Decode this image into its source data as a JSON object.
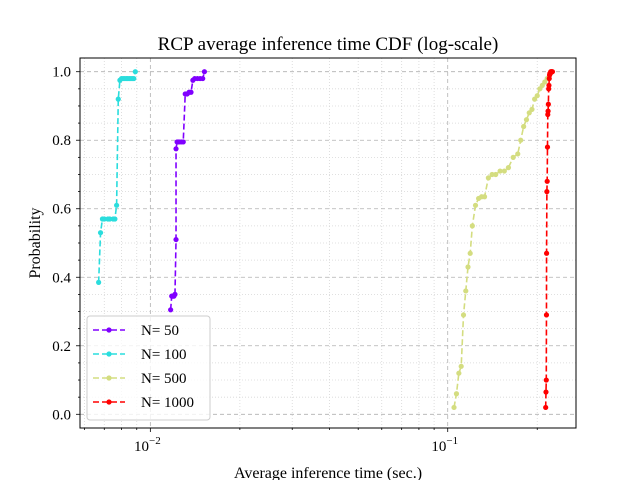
{
  "chart_data": {
    "type": "line",
    "title": "RCP average inference time CDF (log-scale)",
    "xlabel": "Average inference time (sec.)",
    "ylabel": "Probability",
    "xscale": "log",
    "xlim": [
      0.0058,
      0.27
    ],
    "ylim": [
      -0.04,
      1.04
    ],
    "grid": true,
    "legend_location": "lower-left",
    "x_ticks": [
      {
        "value": 0.01,
        "base": "10",
        "exp": "−2"
      },
      {
        "value": 0.1,
        "base": "10",
        "exp": "−1"
      }
    ],
    "y_ticks": [
      {
        "value": 0.0,
        "label": "0.0"
      },
      {
        "value": 0.2,
        "label": "0.2"
      },
      {
        "value": 0.4,
        "label": "0.4"
      },
      {
        "value": 0.6,
        "label": "0.6"
      },
      {
        "value": 0.8,
        "label": "0.8"
      },
      {
        "value": 1.0,
        "label": "1.0"
      }
    ],
    "series": [
      {
        "name": "N= 50",
        "color": "#8000ff",
        "x": [
          0.0117,
          0.0118,
          0.0119,
          0.012,
          0.0121,
          0.0122,
          0.0122,
          0.0123,
          0.0124,
          0.0125,
          0.0127,
          0.0129,
          0.0131,
          0.0133,
          0.0135,
          0.0137,
          0.0139,
          0.0141,
          0.0144,
          0.0147,
          0.015,
          0.0152
        ],
        "y": [
          0.305,
          0.345,
          0.345,
          0.345,
          0.35,
          0.51,
          0.775,
          0.795,
          0.795,
          0.795,
          0.795,
          0.795,
          0.935,
          0.935,
          0.94,
          0.94,
          0.975,
          0.98,
          0.98,
          0.98,
          0.98,
          1.0
        ]
      },
      {
        "name": "N= 100",
        "color": "#2adddd",
        "x": [
          0.0067,
          0.0068,
          0.0069,
          0.007,
          0.0072,
          0.0073,
          0.0075,
          0.0076,
          0.0077,
          0.0078,
          0.0079,
          0.008,
          0.0081,
          0.0082,
          0.0083,
          0.0084,
          0.0085,
          0.0086,
          0.0087,
          0.0088,
          0.0089
        ],
        "y": [
          0.385,
          0.53,
          0.57,
          0.57,
          0.57,
          0.57,
          0.57,
          0.57,
          0.61,
          0.92,
          0.975,
          0.98,
          0.98,
          0.98,
          0.98,
          0.98,
          0.98,
          0.98,
          0.98,
          0.98,
          1.0
        ]
      },
      {
        "name": "N= 500",
        "color": "#d4dd80",
        "x": [
          0.105,
          0.107,
          0.109,
          0.111,
          0.113,
          0.115,
          0.117,
          0.119,
          0.121,
          0.124,
          0.127,
          0.13,
          0.133,
          0.137,
          0.141,
          0.145,
          0.15,
          0.155,
          0.16,
          0.166,
          0.172,
          0.176,
          0.18,
          0.184,
          0.188,
          0.192,
          0.196,
          0.2,
          0.204,
          0.208,
          0.212,
          0.216
        ],
        "y": [
          0.02,
          0.06,
          0.12,
          0.14,
          0.29,
          0.36,
          0.43,
          0.47,
          0.55,
          0.61,
          0.63,
          0.635,
          0.635,
          0.69,
          0.7,
          0.7,
          0.71,
          0.71,
          0.72,
          0.75,
          0.76,
          0.8,
          0.84,
          0.86,
          0.88,
          0.89,
          0.92,
          0.93,
          0.95,
          0.96,
          0.97,
          0.98
        ]
      },
      {
        "name": "N= 1000",
        "color": "#ff0000",
        "x": [
          0.2135,
          0.214,
          0.2145,
          0.2148,
          0.215,
          0.2155,
          0.216,
          0.2165,
          0.217,
          0.2175,
          0.218,
          0.2185,
          0.219,
          0.2195,
          0.22,
          0.2205,
          0.221,
          0.2215,
          0.222,
          0.223,
          0.224,
          0.225
        ],
        "y": [
          0.02,
          0.065,
          0.1,
          0.29,
          0.47,
          0.65,
          0.68,
          0.78,
          0.875,
          0.885,
          0.905,
          0.95,
          0.96,
          0.98,
          0.99,
          0.995,
          0.995,
          0.995,
          1.0,
          1.0,
          1.0,
          1.0
        ]
      }
    ]
  }
}
